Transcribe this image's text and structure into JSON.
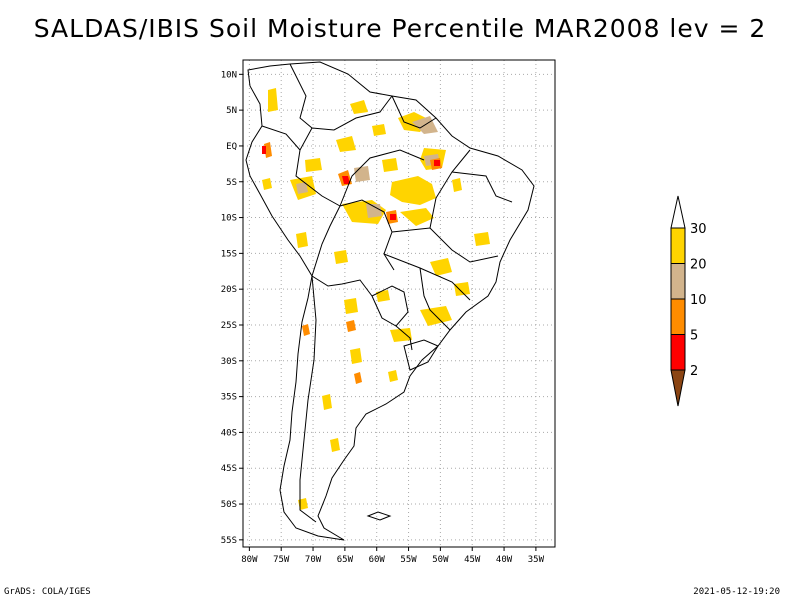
{
  "title": "SALDAS/IBIS Soil Moisture Percentile MAR2008 lev = 2",
  "footer": {
    "left": "GrADS: COLA/IGES",
    "right": "2021-05-12-19:20"
  },
  "map": {
    "region": "South America",
    "lon_range": [
      -81,
      -32
    ],
    "lat_range": [
      -56,
      12
    ],
    "grid": "dotted",
    "lat_ticks": [
      {
        "lat": 10,
        "label": "10N"
      },
      {
        "lat": 5,
        "label": "5N"
      },
      {
        "lat": 0,
        "label": "EQ"
      },
      {
        "lat": -5,
        "label": "5S"
      },
      {
        "lat": -10,
        "label": "10S"
      },
      {
        "lat": -15,
        "label": "15S"
      },
      {
        "lat": -20,
        "label": "20S"
      },
      {
        "lat": -25,
        "label": "25S"
      },
      {
        "lat": -30,
        "label": "30S"
      },
      {
        "lat": -35,
        "label": "35S"
      },
      {
        "lat": -40,
        "label": "40S"
      },
      {
        "lat": -45,
        "label": "45S"
      },
      {
        "lat": -50,
        "label": "50S"
      },
      {
        "lat": -55,
        "label": "55S"
      }
    ],
    "lon_ticks": [
      {
        "lon": -80,
        "label": "80W"
      },
      {
        "lon": -75,
        "label": "75W"
      },
      {
        "lon": -70,
        "label": "70W"
      },
      {
        "lon": -65,
        "label": "65W"
      },
      {
        "lon": -60,
        "label": "60W"
      },
      {
        "lon": -55,
        "label": "55W"
      },
      {
        "lon": -50,
        "label": "50W"
      },
      {
        "lon": -45,
        "label": "45W"
      },
      {
        "lon": -40,
        "label": "40W"
      },
      {
        "lon": -35,
        "label": "35W"
      }
    ]
  },
  "legend": {
    "top_color": "#ffffff",
    "bottom_color": "#8b4513",
    "bins": [
      {
        "color": "#ffd400"
      },
      {
        "color": "#d2b48c"
      },
      {
        "color": "#ff8c00"
      },
      {
        "color": "#ff0000"
      }
    ],
    "labels": [
      "30",
      "20",
      "10",
      "5",
      "2"
    ]
  }
}
